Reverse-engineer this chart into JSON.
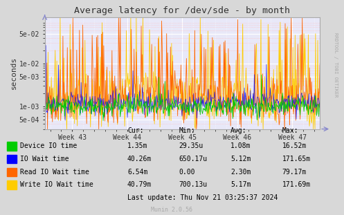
{
  "title": "Average latency for /dev/sde - by month",
  "ylabel": "seconds",
  "background_color": "#d8d8d8",
  "plot_bg_color": "#e8e8f8",
  "grid_color_major": "#ffffff",
  "grid_color_minor": "#ffbbbb",
  "x_ticks_labels": [
    "Week 43",
    "Week 44",
    "Week 45",
    "Week 46",
    "Week 47"
  ],
  "ylim_min": 0.0003,
  "ylim_max": 0.12,
  "legend_entries": [
    {
      "label": "Device IO time",
      "color": "#00cc00"
    },
    {
      "label": "IO Wait time",
      "color": "#0000ff"
    },
    {
      "label": "Read IO Wait time",
      "color": "#ff6600"
    },
    {
      "label": "Write IO Wait time",
      "color": "#ffcc00"
    }
  ],
  "legend_table": {
    "headers": [
      "Cur:",
      "Min:",
      "Avg:",
      "Max:"
    ],
    "rows": [
      [
        "1.35m",
        "29.35u",
        "1.08m",
        "16.52m"
      ],
      [
        "40.26m",
        "650.17u",
        "5.12m",
        "171.65m"
      ],
      [
        "6.54m",
        "0.00",
        "2.30m",
        "79.17m"
      ],
      [
        "40.79m",
        "700.13u",
        "5.17m",
        "171.69m"
      ]
    ]
  },
  "last_update": "Last update: Thu Nov 21 03:25:37 2024",
  "rrdtool_label": "RRDTOOL / TOBI OETIKER",
  "munin_label": "Munin 2.0.56",
  "n_points": 500,
  "seed": 42
}
